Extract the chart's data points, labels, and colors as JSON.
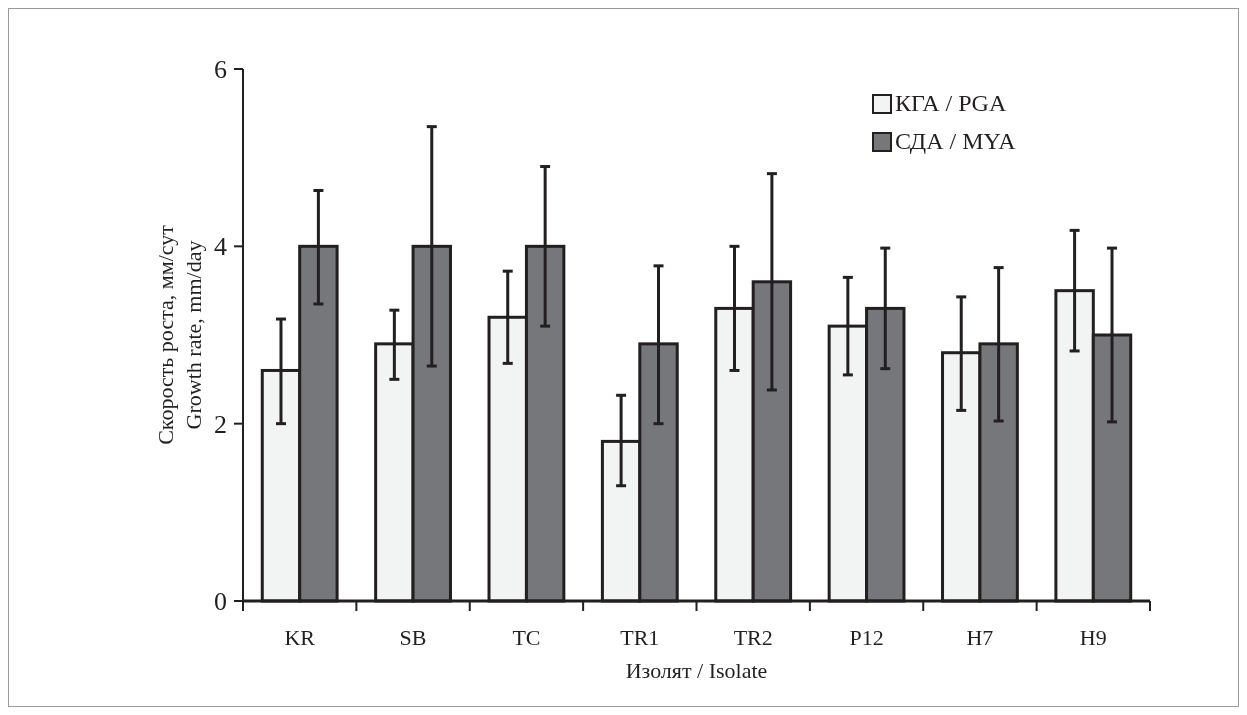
{
  "chart_data": {
    "type": "bar",
    "xlabel": "Изолят / Isolate",
    "ylabel": "Скорость роста, мм/сут\nGrowth rate, mm/day",
    "categories": [
      "KR",
      "SB",
      "TC",
      "TR1",
      "TR2",
      "P12",
      "H7",
      "H9"
    ],
    "series": [
      {
        "name": "КГА / PGA",
        "color": "#f2f4f3",
        "values": [
          2.6,
          2.9,
          3.2,
          1.8,
          3.3,
          3.1,
          2.8,
          3.5
        ],
        "errors": [
          [
            2.0,
            3.18
          ],
          [
            2.5,
            3.28
          ],
          [
            2.68,
            3.72
          ],
          [
            1.3,
            2.32
          ],
          [
            2.6,
            4.0
          ],
          [
            2.55,
            3.65
          ],
          [
            2.15,
            3.43
          ],
          [
            2.82,
            4.18
          ]
        ]
      },
      {
        "name": "СДА / MYA",
        "color": "#76777b",
        "values": [
          4.0,
          4.0,
          4.0,
          2.9,
          3.6,
          3.3,
          2.9,
          3.0
        ],
        "errors": [
          [
            3.35,
            4.63
          ],
          [
            2.65,
            5.35
          ],
          [
            3.1,
            4.9
          ],
          [
            2.0,
            3.78
          ],
          [
            2.38,
            4.82
          ],
          [
            2.62,
            3.98
          ],
          [
            2.03,
            3.76
          ],
          [
            2.02,
            3.98
          ]
        ]
      }
    ],
    "ylim": [
      0,
      6
    ],
    "yticks": [
      0,
      2,
      4,
      6
    ],
    "grid": false,
    "legend": "top right"
  }
}
